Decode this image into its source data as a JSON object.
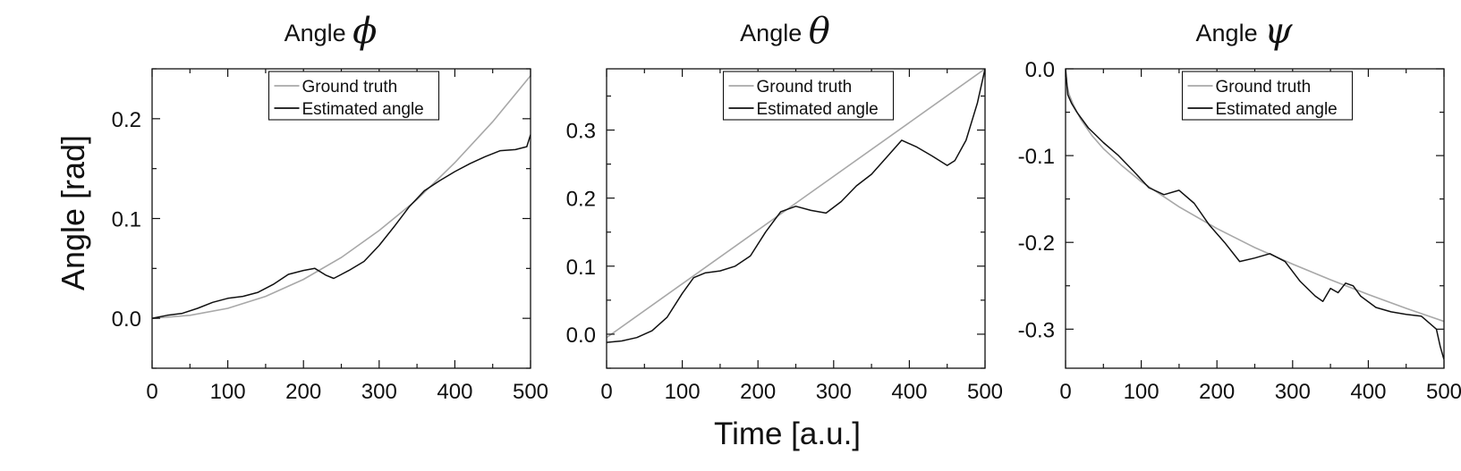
{
  "figure": {
    "ylabel": "Angle [rad]",
    "xlabel": "Time [a.u.]"
  },
  "colors": {
    "ground_truth": "#a8a8a8",
    "estimated": "#111111"
  },
  "chart_data": [
    {
      "type": "line",
      "title_prefix": "Angle",
      "title_symbol": "ϕ",
      "xlim": [
        0,
        500
      ],
      "ylim": [
        -0.05,
        0.25
      ],
      "xticks": [
        0,
        100,
        200,
        300,
        400,
        500
      ],
      "yticks": [
        0.0,
        0.1,
        0.2
      ],
      "ytick_labels": [
        "0.0",
        "0.1",
        "0.2"
      ],
      "legend_position": "top-center",
      "series": [
        {
          "name": "Ground truth",
          "x": [
            0,
            50,
            100,
            150,
            200,
            250,
            300,
            350,
            400,
            450,
            500
          ],
          "y": [
            0.0,
            0.003,
            0.01,
            0.022,
            0.039,
            0.061,
            0.088,
            0.119,
            0.156,
            0.197,
            0.243
          ]
        },
        {
          "name": "Estimated angle",
          "x": [
            0,
            20,
            40,
            60,
            80,
            100,
            120,
            140,
            160,
            180,
            200,
            215,
            230,
            240,
            260,
            280,
            300,
            320,
            340,
            360,
            380,
            400,
            420,
            440,
            460,
            480,
            495,
            500
          ],
          "y": [
            0.0,
            0.003,
            0.005,
            0.01,
            0.016,
            0.02,
            0.022,
            0.026,
            0.034,
            0.044,
            0.048,
            0.05,
            0.043,
            0.04,
            0.048,
            0.057,
            0.073,
            0.092,
            0.112,
            0.128,
            0.138,
            0.147,
            0.155,
            0.162,
            0.168,
            0.169,
            0.172,
            0.184
          ]
        }
      ]
    },
    {
      "type": "line",
      "title_prefix": "Angle",
      "title_symbol": "θ",
      "xlim": [
        0,
        500
      ],
      "ylim": [
        -0.05,
        0.39
      ],
      "xticks": [
        0,
        100,
        200,
        300,
        400,
        500
      ],
      "yticks": [
        0.0,
        0.1,
        0.2,
        0.3
      ],
      "ytick_labels": [
        "0.0",
        "0.1",
        "0.2",
        "0.3"
      ],
      "legend_position": "top-center",
      "series": [
        {
          "name": "Ground truth",
          "x": [
            0,
            500
          ],
          "y": [
            -0.005,
            0.39
          ]
        },
        {
          "name": "Estimated angle",
          "x": [
            0,
            20,
            40,
            60,
            80,
            100,
            115,
            130,
            150,
            170,
            190,
            210,
            230,
            250,
            270,
            290,
            310,
            330,
            350,
            370,
            390,
            410,
            430,
            450,
            460,
            475,
            490,
            500
          ],
          "y": [
            -0.012,
            -0.01,
            -0.005,
            0.005,
            0.025,
            0.06,
            0.083,
            0.09,
            0.093,
            0.1,
            0.115,
            0.15,
            0.18,
            0.188,
            0.182,
            0.178,
            0.195,
            0.218,
            0.235,
            0.26,
            0.285,
            0.275,
            0.262,
            0.248,
            0.255,
            0.285,
            0.34,
            0.39
          ]
        }
      ]
    },
    {
      "type": "line",
      "title_prefix": "Angle",
      "title_symbol": "ψ",
      "xlim": [
        0,
        500
      ],
      "ylim": [
        -0.345,
        0.0
      ],
      "xticks": [
        0,
        100,
        200,
        300,
        400,
        500
      ],
      "yticks": [
        0.0,
        -0.1,
        -0.2,
        -0.3
      ],
      "ytick_labels": [
        "0.0",
        "-0.1",
        "-0.2",
        "-0.3"
      ],
      "legend_position": "top-center",
      "series": [
        {
          "name": "Ground truth",
          "x": [
            0,
            2,
            5,
            10,
            20,
            35,
            50,
            75,
            100,
            150,
            200,
            250,
            300,
            350,
            400,
            450,
            500
          ],
          "y": [
            0.0,
            -0.02,
            -0.03,
            -0.041,
            -0.058,
            -0.077,
            -0.092,
            -0.112,
            -0.13,
            -0.159,
            -0.184,
            -0.206,
            -0.225,
            -0.243,
            -0.26,
            -0.276,
            -0.291
          ]
        },
        {
          "name": "Estimated angle",
          "x": [
            0,
            3,
            8,
            15,
            30,
            50,
            70,
            90,
            110,
            130,
            150,
            170,
            190,
            210,
            230,
            250,
            270,
            290,
            310,
            330,
            340,
            350,
            360,
            370,
            380,
            390,
            410,
            430,
            450,
            470,
            490,
            495,
            500
          ],
          "y": [
            0.0,
            -0.03,
            -0.04,
            -0.05,
            -0.068,
            -0.085,
            -0.1,
            -0.118,
            -0.137,
            -0.145,
            -0.14,
            -0.155,
            -0.18,
            -0.2,
            -0.222,
            -0.218,
            -0.213,
            -0.222,
            -0.245,
            -0.262,
            -0.268,
            -0.253,
            -0.258,
            -0.247,
            -0.25,
            -0.262,
            -0.275,
            -0.28,
            -0.283,
            -0.285,
            -0.3,
            -0.32,
            -0.335
          ]
        }
      ]
    }
  ]
}
